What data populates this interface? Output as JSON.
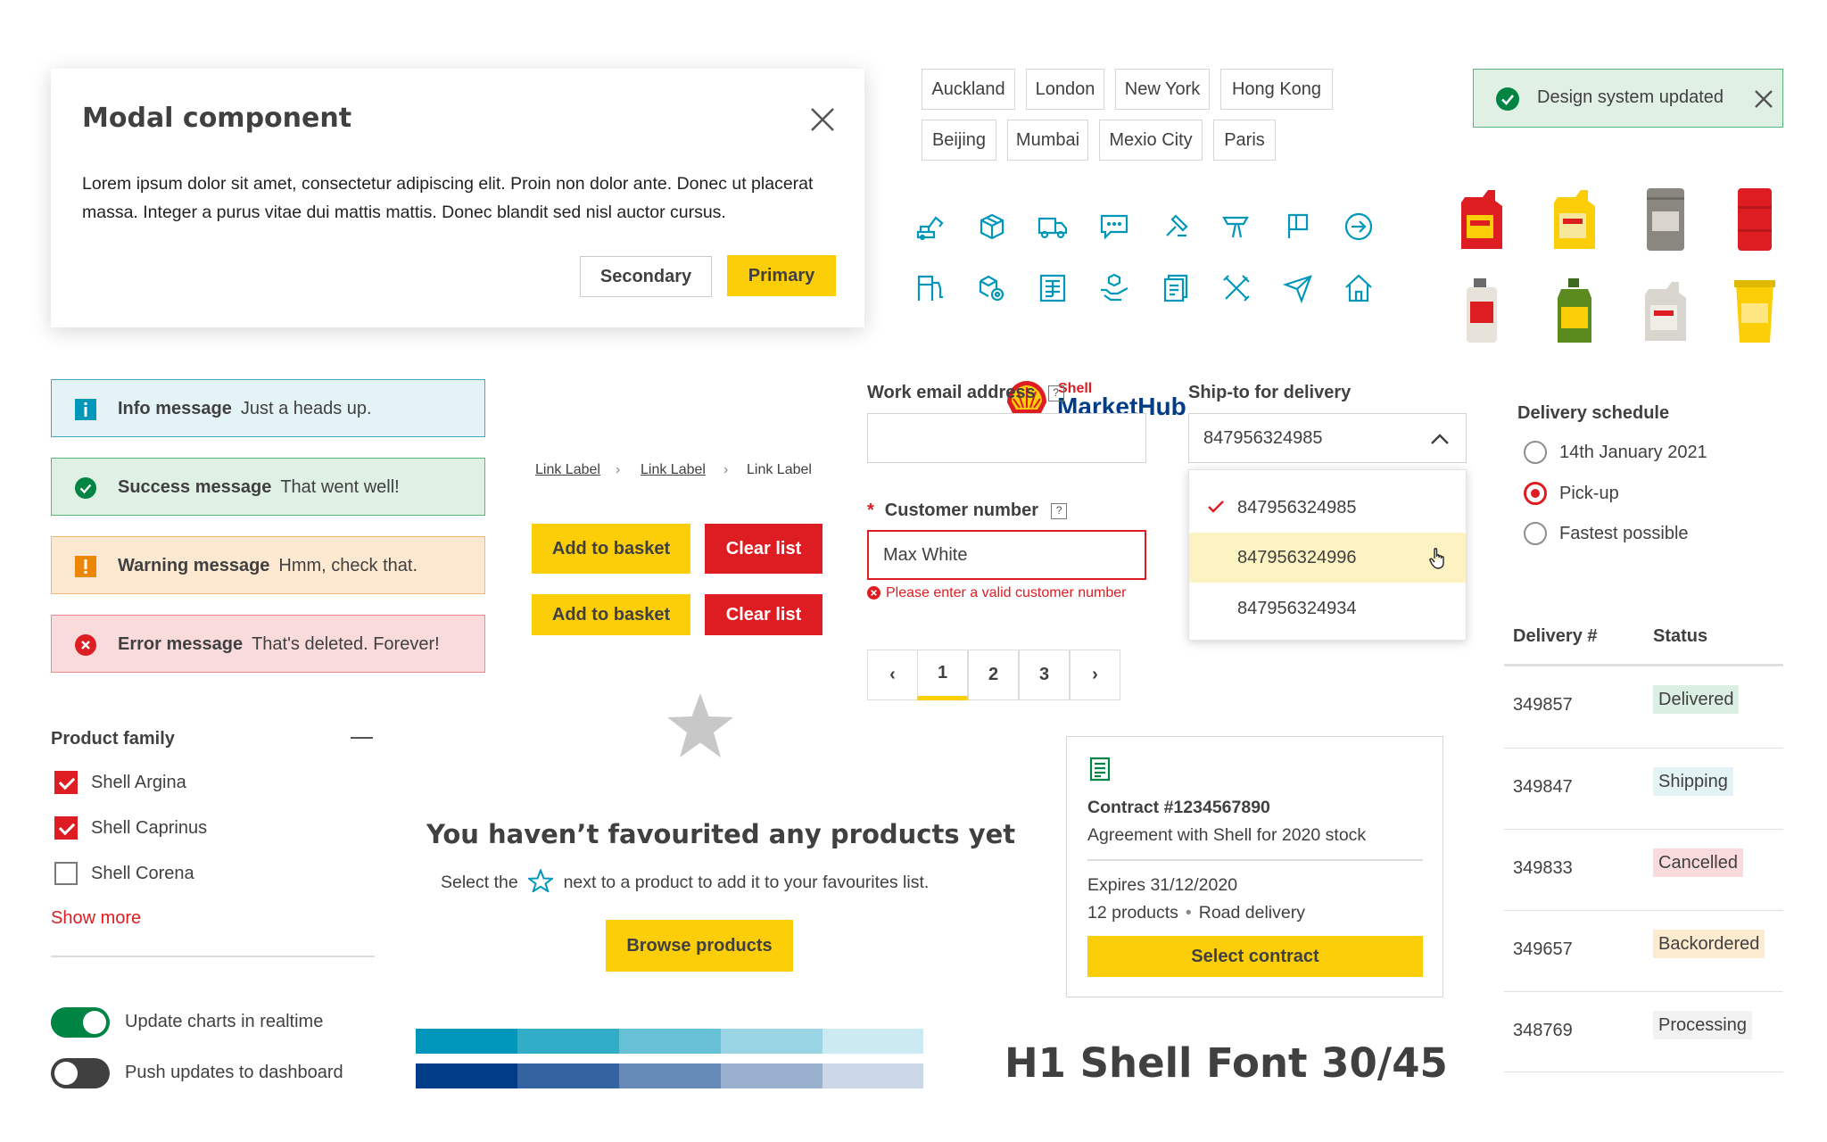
{
  "modal": {
    "title": "Modal component",
    "body": "Lorem ipsum dolor sit amet, consectetur adipiscing elit. Proin non dolor ante. Donec ut placerat massa. Integer a purus vitae dui mattis mattis. Donec blandit sed nisl auctor cursus.",
    "secondary_label": "Secondary",
    "primary_label": "Primary"
  },
  "cities": [
    "Auckland",
    "London",
    "New York",
    "Hong Kong",
    "Beijing",
    "Mumbai",
    "Mexio City",
    "Paris"
  ],
  "toast": {
    "text": "Design system updated"
  },
  "icons": [
    "excavator-icon",
    "package-icon",
    "truck-icon",
    "chat-icon",
    "drill-icon",
    "signpost-icon",
    "flag-icon",
    "arrow-circle-right-icon",
    "fuel-pump-icon",
    "fleet-settings-icon",
    "document-table-icon",
    "hand-product-icon",
    "documents-icon",
    "tools-icon",
    "send-icon",
    "home-icon"
  ],
  "alerts": [
    {
      "title": "Info message",
      "text": "Just a heads up."
    },
    {
      "title": "Success message",
      "text": "That went well!"
    },
    {
      "title": "Warning message",
      "text": "Hmm, check that."
    },
    {
      "title": "Error message",
      "text": "That's deleted. Forever!"
    }
  ],
  "brand": {
    "shell": "Shell",
    "name": "MarketHub"
  },
  "breadcrumb": [
    "Link Label",
    "Link Label",
    "Link Label"
  ],
  "buttons": {
    "add_to_basket": "Add to basket",
    "clear_list": "Clear list"
  },
  "form": {
    "email_label": "Work email address",
    "email_value": "",
    "customer_label": "Customer number",
    "customer_value": "Max White",
    "customer_error": "Please enter a valid customer number",
    "required_mark": "*",
    "help_mark": "?"
  },
  "pagination": {
    "pages": [
      "1",
      "2",
      "3"
    ],
    "current": "1"
  },
  "dropdown": {
    "label": "Ship-to for delivery",
    "value": "847956324985",
    "options": [
      "847956324985",
      "847956324996",
      "847956324934"
    ]
  },
  "delivery_schedule": {
    "title": "Delivery schedule",
    "options": [
      "14th January 2021",
      "Pick-up",
      "Fastest possible"
    ],
    "selected": "Pick-up"
  },
  "delivery_table": {
    "headers": [
      "Delivery #",
      "Status"
    ],
    "rows": [
      {
        "number": "349857",
        "status": "Delivered",
        "color": "#dcefe3"
      },
      {
        "number": "349847",
        "status": "Shipping",
        "color": "#e4f4f6"
      },
      {
        "number": "349833",
        "status": "Cancelled",
        "color": "#fadbdc"
      },
      {
        "number": "349657",
        "status": "Backordered",
        "color": "#fdebd0"
      },
      {
        "number": "348769",
        "status": "Processing",
        "color": "#f2f2f2"
      }
    ]
  },
  "product_family": {
    "title": "Product family",
    "items": [
      {
        "label": "Shell Argina",
        "checked": true
      },
      {
        "label": "Shell Caprinus",
        "checked": true
      },
      {
        "label": "Shell Corena",
        "checked": false
      }
    ],
    "show_more": "Show more"
  },
  "toggles": [
    {
      "label": "Update charts in realtime",
      "on": true
    },
    {
      "label": "Push updates to dashboard",
      "on": false
    }
  ],
  "empty_state": {
    "title": "You haven’t favourited any products yet",
    "sub_before": "Select the",
    "sub_after": "next to a product to add it to your favourites list.",
    "button": "Browse products"
  },
  "contract": {
    "title": "Contract #1234567890",
    "subtitle": "Agreement with Shell for 2020 stock",
    "expires": "Expires 31/12/2020",
    "products": "12 products",
    "delivery": "Road delivery",
    "button": "Select contract"
  },
  "colors": {
    "shell_yellow": "#fbce07",
    "shell_red": "#dd1d21",
    "teal": "#0097bb",
    "dark_blue": "#003c88",
    "success_green": "#008443",
    "swatches_teal": [
      "#0097bb",
      "#32adc8",
      "#66c1d6",
      "#99d5e4",
      "#cceaf1"
    ],
    "swatches_blue": [
      "#003c88",
      "#3363a0",
      "#668ab8",
      "#99b1cf",
      "#ccd8e7"
    ]
  },
  "typography_sample": "H1 Shell Font 30/45"
}
